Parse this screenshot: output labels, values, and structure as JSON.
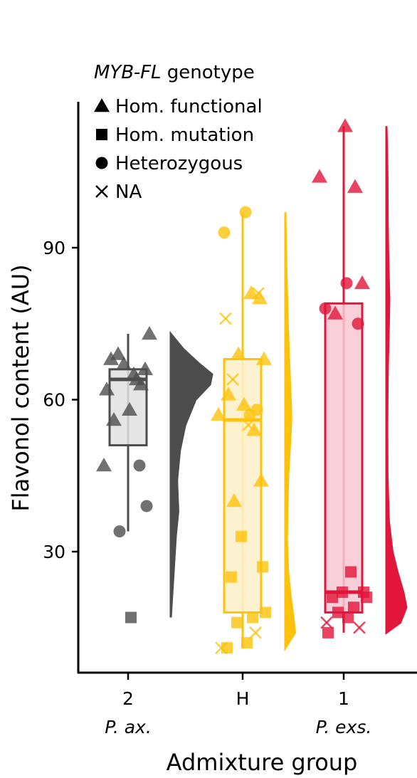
{
  "chart_data": {
    "type": "raincloud",
    "xlabel": "Admixture group",
    "ylabel": "Flavonol content (AU)",
    "yticks": [
      30,
      60,
      90
    ],
    "ylim": [
      7,
      124
    ],
    "grid": false,
    "legend": {
      "title": "MYB-FL genotype",
      "placement": "top-left",
      "entries": [
        {
          "shape": "triangle",
          "label": "Hom. functional"
        },
        {
          "shape": "square",
          "label": "Hom. mutation"
        },
        {
          "shape": "circle",
          "label": "Heterozygous"
        },
        {
          "shape": "cross",
          "label": "NA"
        }
      ]
    },
    "groups": [
      {
        "tick": "2",
        "sublabel": "P. ax.",
        "color": "#4d4d4d",
        "box_fill": "#e0e0e0",
        "box": {
          "min": 34,
          "q1": 51,
          "median": 64,
          "q3": 66,
          "max": 73
        },
        "density": [
          [
            17,
            0
          ],
          [
            25,
            0.06
          ],
          [
            33,
            0.12
          ],
          [
            38,
            0.18
          ],
          [
            44,
            0.15
          ],
          [
            50,
            0.22
          ],
          [
            55,
            0.35
          ],
          [
            60,
            0.6
          ],
          [
            63,
            0.95
          ],
          [
            65,
            1.0
          ],
          [
            67,
            0.7
          ],
          [
            70,
            0.3
          ],
          [
            73,
            0
          ]
        ],
        "points": [
          {
            "shape": "triangle",
            "y": 68
          },
          {
            "shape": "triangle",
            "y": 69
          },
          {
            "shape": "triangle",
            "y": 65
          },
          {
            "shape": "triangle",
            "y": 63
          },
          {
            "shape": "triangle",
            "y": 62
          },
          {
            "shape": "triangle",
            "y": 64
          },
          {
            "shape": "triangle",
            "y": 66
          },
          {
            "shape": "triangle",
            "y": 67
          },
          {
            "shape": "triangle",
            "y": 73
          },
          {
            "shape": "triangle",
            "y": 56
          },
          {
            "shape": "triangle",
            "y": 58
          },
          {
            "shape": "triangle",
            "y": 47
          },
          {
            "shape": "circle",
            "y": 47
          },
          {
            "shape": "circle",
            "y": 39
          },
          {
            "shape": "circle",
            "y": 34
          },
          {
            "shape": "square",
            "y": 17
          }
        ]
      },
      {
        "tick": "H",
        "sublabel": "",
        "color": "#ffc20a",
        "box_fill": "#fdf0c8",
        "box": {
          "min": 11,
          "q1": 18,
          "median": 56,
          "q3": 68,
          "max": 97
        },
        "density": [
          [
            11,
            0
          ],
          [
            14,
            0.9
          ],
          [
            17,
            0.75
          ],
          [
            21,
            0.5
          ],
          [
            26,
            0.25
          ],
          [
            32,
            0.14
          ],
          [
            38,
            0.18
          ],
          [
            45,
            0.26
          ],
          [
            52,
            0.45
          ],
          [
            56,
            0.55
          ],
          [
            60,
            0.5
          ],
          [
            65,
            0.4
          ],
          [
            70,
            0.3
          ],
          [
            78,
            0.18
          ],
          [
            86,
            0.09
          ],
          [
            97,
            0
          ]
        ],
        "points": [
          {
            "shape": "triangle",
            "y": 81
          },
          {
            "shape": "triangle",
            "y": 80
          },
          {
            "shape": "triangle",
            "y": 69
          },
          {
            "shape": "triangle",
            "y": 68
          },
          {
            "shape": "triangle",
            "y": 61
          },
          {
            "shape": "triangle",
            "y": 59
          },
          {
            "shape": "triangle",
            "y": 57
          },
          {
            "shape": "triangle",
            "y": 54
          },
          {
            "shape": "triangle",
            "y": 44
          },
          {
            "shape": "triangle",
            "y": 40
          },
          {
            "shape": "circle",
            "y": 97
          },
          {
            "shape": "circle",
            "y": 93
          },
          {
            "shape": "circle",
            "y": 58
          },
          {
            "shape": "circle",
            "y": 57
          },
          {
            "shape": "square",
            "y": 33
          },
          {
            "shape": "square",
            "y": 27
          },
          {
            "shape": "square",
            "y": 25
          },
          {
            "shape": "square",
            "y": 18
          },
          {
            "shape": "square",
            "y": 17
          },
          {
            "shape": "square",
            "y": 16
          },
          {
            "shape": "square",
            "y": 12
          },
          {
            "shape": "square",
            "y": 11
          },
          {
            "shape": "cross",
            "y": 81
          },
          {
            "shape": "cross",
            "y": 76
          },
          {
            "shape": "cross",
            "y": 64
          },
          {
            "shape": "cross",
            "y": 55
          },
          {
            "shape": "cross",
            "y": 14
          },
          {
            "shape": "cross",
            "y": 11
          }
        ]
      },
      {
        "tick": "1",
        "sublabel": "P. exs.",
        "color": "#e2153a",
        "box_fill": "#f8c8d2",
        "box": {
          "min": 14,
          "q1": 18,
          "median": 22,
          "q3": 79,
          "max": 114
        },
        "density": [
          [
            14,
            0
          ],
          [
            16,
            0.7
          ],
          [
            19,
            1.0
          ],
          [
            22,
            0.85
          ],
          [
            26,
            0.55
          ],
          [
            30,
            0.3
          ],
          [
            36,
            0.12
          ],
          [
            45,
            0.05
          ],
          [
            55,
            0.04
          ],
          [
            65,
            0.06
          ],
          [
            75,
            0.12
          ],
          [
            80,
            0.14
          ],
          [
            88,
            0.09
          ],
          [
            95,
            0.06
          ],
          [
            104,
            0.05
          ],
          [
            109,
            0.03
          ],
          [
            114,
            0
          ]
        ],
        "points": [
          {
            "shape": "triangle",
            "y": 114
          },
          {
            "shape": "triangle",
            "y": 104
          },
          {
            "shape": "triangle",
            "y": 102
          },
          {
            "shape": "triangle",
            "y": 83
          },
          {
            "shape": "triangle",
            "y": 77
          },
          {
            "shape": "circle",
            "y": 83
          },
          {
            "shape": "circle",
            "y": 78
          },
          {
            "shape": "circle",
            "y": 75
          },
          {
            "shape": "square",
            "y": 26
          },
          {
            "shape": "square",
            "y": 22
          },
          {
            "shape": "square",
            "y": 22
          },
          {
            "shape": "square",
            "y": 21
          },
          {
            "shape": "square",
            "y": 21
          },
          {
            "shape": "square",
            "y": 19
          },
          {
            "shape": "square",
            "y": 18
          },
          {
            "shape": "square",
            "y": 17
          },
          {
            "shape": "square",
            "y": 14
          },
          {
            "shape": "cross",
            "y": 15
          },
          {
            "shape": "cross",
            "y": 16
          }
        ]
      }
    ]
  }
}
